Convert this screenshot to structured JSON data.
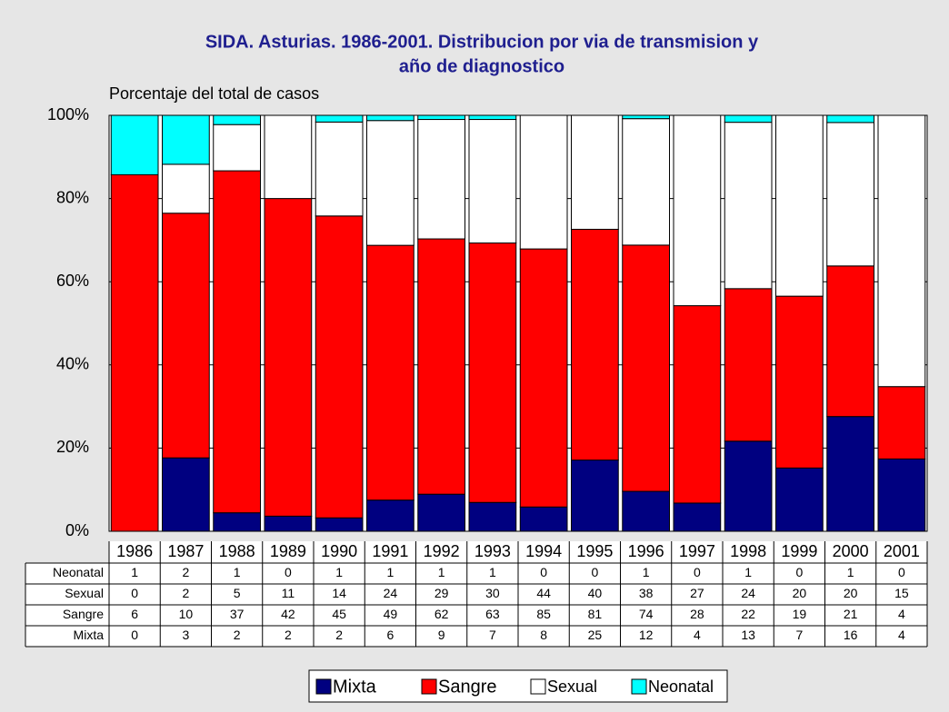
{
  "chart_data": {
    "type": "stacked_percent_bar",
    "title": "SIDA. Asturias. 1986-2001. Distribucion por via de transmision y",
    "title_line2": "año de diagnostico",
    "y_label": "Porcentaje del total de casos",
    "categories": [
      "1986",
      "1987",
      "1988",
      "1989",
      "1990",
      "1991",
      "1992",
      "1993",
      "1994",
      "1995",
      "1996",
      "1997",
      "1998",
      "1999",
      "2000",
      "2001"
    ],
    "series": [
      {
        "name": "Mixta",
        "color": "#000080",
        "values": [
          0,
          3,
          2,
          2,
          2,
          6,
          9,
          7,
          8,
          25,
          12,
          4,
          13,
          7,
          16,
          4
        ]
      },
      {
        "name": "Sangre",
        "color": "#ff0000",
        "values": [
          6,
          10,
          37,
          42,
          45,
          49,
          62,
          63,
          85,
          81,
          74,
          28,
          22,
          19,
          21,
          4
        ]
      },
      {
        "name": "Sexual",
        "color": "#ffffff",
        "values": [
          0,
          2,
          5,
          11,
          14,
          24,
          29,
          30,
          44,
          40,
          38,
          27,
          24,
          20,
          20,
          15
        ]
      },
      {
        "name": "Neonatal",
        "color": "#00ffff",
        "values": [
          1,
          2,
          1,
          0,
          1,
          1,
          1,
          1,
          0,
          0,
          1,
          0,
          1,
          0,
          1,
          0
        ]
      }
    ],
    "ylim": [
      0,
      100
    ],
    "yticks": [
      {
        "value": 0,
        "label": "0%"
      },
      {
        "value": 20,
        "label": "20%"
      },
      {
        "value": 40,
        "label": "40%"
      },
      {
        "value": 60,
        "label": "60%"
      },
      {
        "value": 80,
        "label": "80%"
      },
      {
        "value": 100,
        "label": "100%"
      }
    ],
    "grid": true
  }
}
